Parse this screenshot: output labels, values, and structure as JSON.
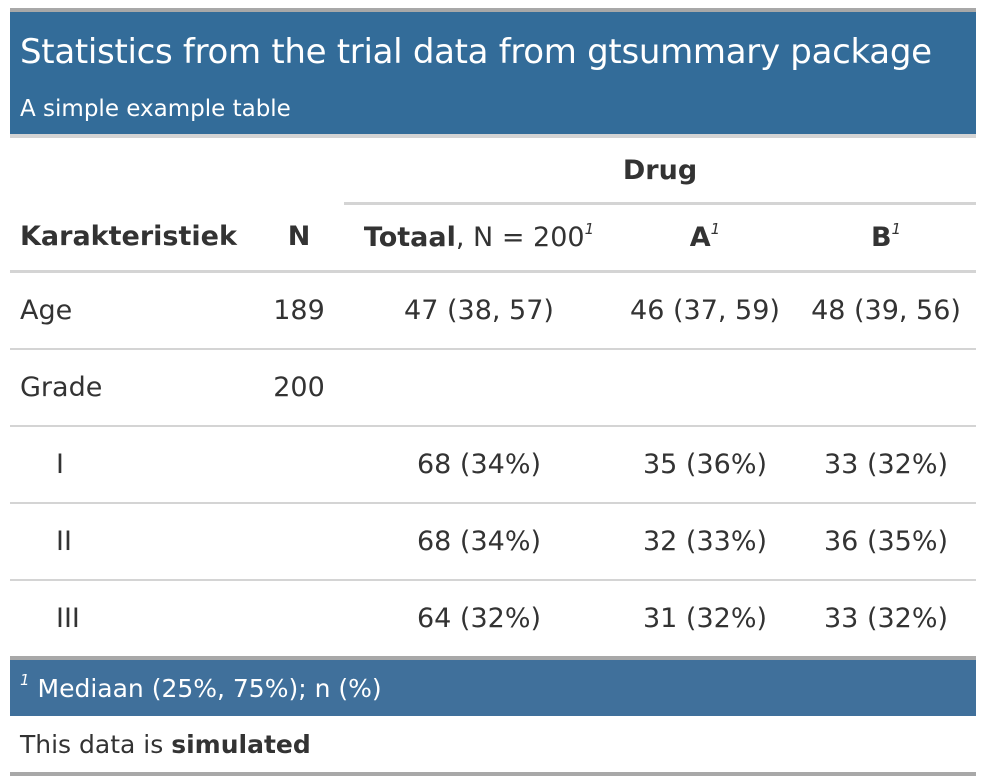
{
  "header": {
    "title": "Statistics from the trial data from gtsummary package",
    "subtitle": "A simple example table"
  },
  "spanner": {
    "label": "Drug"
  },
  "columns": {
    "characteristic": "Karakteristiek",
    "n": "N",
    "total_bold": "Totaal",
    "total_rest": ", N = 200",
    "a": "A",
    "b": "B",
    "footnote_mark": "1"
  },
  "rows": [
    {
      "label": "Age",
      "n": "189",
      "total": "47 (38, 57)",
      "a": "46 (37, 59)",
      "b": "48 (39, 56)"
    },
    {
      "label": "Grade",
      "n": "200",
      "total": "",
      "a": "",
      "b": ""
    },
    {
      "label": "I",
      "n": "",
      "total": "68 (34%)",
      "a": "35 (36%)",
      "b": "33 (32%)"
    },
    {
      "label": "II",
      "n": "",
      "total": "68 (34%)",
      "a": "32 (33%)",
      "b": "36 (35%)"
    },
    {
      "label": "III",
      "n": "",
      "total": "64 (32%)",
      "a": "31 (32%)",
      "b": "33 (32%)"
    }
  ],
  "footnote": {
    "mark": "1",
    "text": " Mediaan (25%, 75%); n (%)"
  },
  "source_note": {
    "prefix": "This data is ",
    "bold": "simulated"
  },
  "colors": {
    "header_bg": "#336c99",
    "footnote_bg": "#40709b",
    "rule": "#d4d4d4",
    "text": "#333333"
  }
}
